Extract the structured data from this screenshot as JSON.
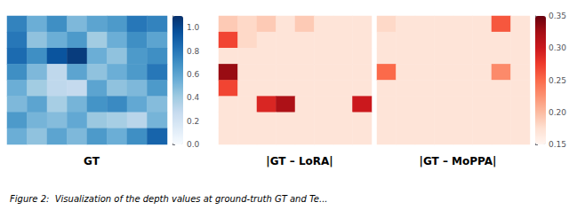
{
  "chart_data": [
    {
      "type": "heatmap",
      "title": "GT",
      "color": "Blues",
      "tick_labels": false,
      "values": [
        [
          0.75,
          0.55,
          0.7,
          0.5,
          0.6,
          0.65,
          0.8,
          0.75
        ],
        [
          0.8,
          0.45,
          0.55,
          0.65,
          0.4,
          0.55,
          0.7,
          0.6
        ],
        [
          0.85,
          0.7,
          0.95,
          1.05,
          0.55,
          0.45,
          0.65,
          0.7
        ],
        [
          0.7,
          0.5,
          0.3,
          0.6,
          0.45,
          0.55,
          0.65,
          0.8
        ],
        [
          0.55,
          0.4,
          0.3,
          0.28,
          0.6,
          0.45,
          0.5,
          0.65
        ],
        [
          0.5,
          0.6,
          0.38,
          0.52,
          0.68,
          0.72,
          0.58,
          0.48
        ],
        [
          0.65,
          0.52,
          0.48,
          0.58,
          0.42,
          0.38,
          0.32,
          0.52
        ],
        [
          0.55,
          0.45,
          0.6,
          0.5,
          0.65,
          0.55,
          0.7,
          0.88
        ]
      ],
      "colorbar": {
        "range": [
          0.0,
          1.1
        ],
        "ticks": [
          {
            "value": 0,
            "label": "0.0"
          },
          0.2,
          0.4,
          0.6,
          0.8,
          {
            "value": 1,
            "label": "1.0"
          }
        ]
      },
      "annotations": [
        "Figure 2:  Visualization of the depth values at ground-truth GT and Te..."
      ]
    },
    {
      "type": "heatmap",
      "title": "|GT – LoRA|",
      "color": "Reds",
      "tick_labels": false,
      "values": [
        [
          0.19,
          0.18,
          0.19,
          0.17,
          0.19,
          0.17,
          0.17,
          0.17
        ],
        [
          0.27,
          0.18,
          0.17,
          0.17,
          0.17,
          0.17,
          0.17,
          0.17
        ],
        [
          0.17,
          0.17,
          0.17,
          0.17,
          0.17,
          0.17,
          0.17,
          0.17
        ],
        [
          0.33,
          0.17,
          0.17,
          0.17,
          0.17,
          0.17,
          0.17,
          0.17
        ],
        [
          0.27,
          0.17,
          0.17,
          0.17,
          0.17,
          0.17,
          0.17,
          0.17
        ],
        [
          0.17,
          0.17,
          0.29,
          0.32,
          0.17,
          0.17,
          0.17,
          0.3
        ],
        [
          0.17,
          0.17,
          0.17,
          0.17,
          0.17,
          0.17,
          0.17,
          0.17
        ],
        [
          0.17,
          0.17,
          0.17,
          0.17,
          0.17,
          0.17,
          0.17,
          0.17
        ]
      ],
      "colorbar": {
        "range": [
          0.15,
          0.35
        ]
      }
    },
    {
      "type": "heatmap",
      "title": "|GT – MoPPA|",
      "color": "Reds",
      "tick_labels": false,
      "values": [
        [
          0.18,
          0.17,
          0.17,
          0.17,
          0.17,
          0.17,
          0.26,
          0.17
        ],
        [
          0.17,
          0.17,
          0.17,
          0.17,
          0.17,
          0.17,
          0.17,
          0.17
        ],
        [
          0.17,
          0.17,
          0.17,
          0.17,
          0.17,
          0.17,
          0.17,
          0.17
        ],
        [
          0.25,
          0.17,
          0.17,
          0.17,
          0.17,
          0.17,
          0.23,
          0.17
        ],
        [
          0.17,
          0.17,
          0.17,
          0.17,
          0.17,
          0.17,
          0.17,
          0.17
        ],
        [
          0.17,
          0.17,
          0.17,
          0.17,
          0.17,
          0.17,
          0.17,
          0.17
        ],
        [
          0.17,
          0.17,
          0.17,
          0.17,
          0.17,
          0.17,
          0.17,
          0.17
        ],
        [
          0.17,
          0.17,
          0.17,
          0.17,
          0.17,
          0.17,
          0.17,
          0.17
        ]
      ],
      "colorbar": {
        "range": [
          0.15,
          0.35
        ],
        "ticks": [
          0.15,
          {
            "value": 0.2,
            "label": "0.20"
          },
          0.25,
          {
            "value": 0.3,
            "label": "0.30"
          },
          0.35
        ]
      }
    }
  ]
}
